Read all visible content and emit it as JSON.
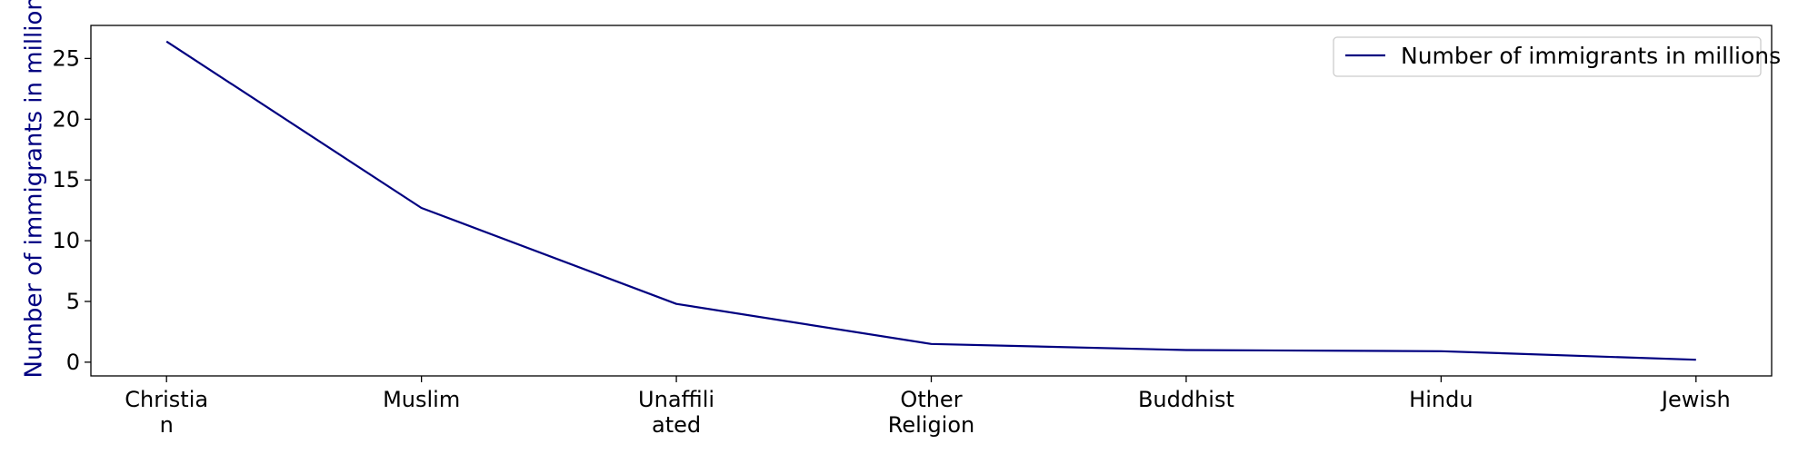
{
  "chart_data": {
    "type": "line",
    "title": "",
    "xlabel": "",
    "ylabel": "Number of immigrants in millions",
    "categories": [
      "Christian",
      "Muslim",
      "Unaffiliated",
      "Other Religion",
      "Buddhist",
      "Hindu",
      "Jewish"
    ],
    "category_labels": [
      [
        "Christia",
        "n"
      ],
      [
        "Muslim"
      ],
      [
        "Unaffili",
        "ated"
      ],
      [
        "Other",
        "Religion"
      ],
      [
        "Buddhist"
      ],
      [
        "Hindu"
      ],
      [
        "Jewish"
      ]
    ],
    "series": [
      {
        "name": "Number of immigrants in millions",
        "values": [
          26.4,
          12.7,
          4.8,
          1.5,
          1.0,
          0.9,
          0.2
        ],
        "color": "#000080"
      }
    ],
    "ylim": [
      -1.13,
      27.72
    ],
    "yticks": [
      0,
      5,
      10,
      15,
      20,
      25
    ],
    "grid": false,
    "legend": "top-right"
  }
}
